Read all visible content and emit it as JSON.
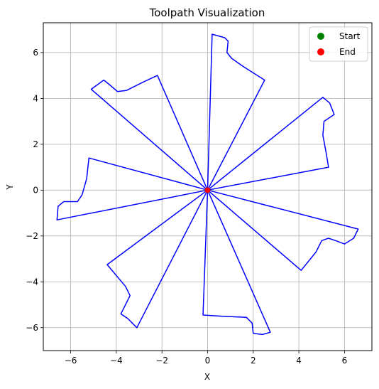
{
  "chart_data": {
    "type": "line",
    "title": "Toolpath Visualization",
    "xlabel": "X",
    "ylabel": "Y",
    "xlim": [
      -7.2,
      7.2
    ],
    "ylim": [
      -7.0,
      7.3
    ],
    "xticks": [
      -6,
      -4,
      -2,
      0,
      2,
      4,
      6
    ],
    "yticks": [
      -6,
      -4,
      -2,
      0,
      2,
      4,
      6
    ],
    "grid": true,
    "legend_position": "top-right",
    "legend": [
      {
        "label": "Start",
        "color": "#008000"
      },
      {
        "label": "End",
        "color": "#ff0000"
      }
    ],
    "path_color": "#0000ff",
    "start": {
      "x": 0,
      "y": 0
    },
    "end": {
      "x": 0,
      "y": 0
    },
    "segments": [
      {
        "x": [
          0,
          5.3,
          5.2,
          5.05,
          5.1,
          5.55,
          5.35,
          5.05,
          0
        ],
        "y": [
          0,
          1.0,
          1.6,
          2.4,
          3.0,
          3.3,
          3.8,
          4.05,
          0
        ]
      },
      {
        "x": [
          0,
          6.6,
          6.4,
          6.0,
          5.6,
          5.3,
          5.0,
          4.75,
          4.1,
          0
        ],
        "y": [
          0,
          -1.7,
          -2.1,
          -2.35,
          -2.2,
          -2.1,
          -2.2,
          -2.7,
          -3.5,
          0
        ]
      },
      {
        "x": [
          0,
          2.75,
          2.4,
          2.0,
          1.95,
          1.7,
          0.6,
          -0.2,
          -0.2,
          0
        ],
        "y": [
          0,
          -6.2,
          -6.3,
          -6.25,
          -5.8,
          -5.55,
          -5.5,
          -5.45,
          -5.4,
          0
        ]
      },
      {
        "x": [
          0,
          -3.1,
          -3.5,
          -3.8,
          -3.6,
          -3.4,
          -3.6,
          -4.4,
          0
        ],
        "y": [
          0,
          -6.0,
          -5.6,
          -5.4,
          -5.0,
          -4.6,
          -4.2,
          -3.25,
          0
        ]
      },
      {
        "x": [
          0,
          -6.6,
          -6.55,
          -6.3,
          -6.0,
          -5.7,
          -5.5,
          -5.3,
          -5.2,
          0
        ],
        "y": [
          0,
          -1.3,
          -0.7,
          -0.5,
          -0.5,
          -0.5,
          -0.2,
          0.5,
          1.4,
          0
        ]
      },
      {
        "x": [
          0,
          -5.1,
          -4.55,
          -4.3,
          -3.95,
          -3.55,
          -2.85,
          -2.2,
          0
        ],
        "y": [
          0,
          4.4,
          4.8,
          4.6,
          4.3,
          4.35,
          4.7,
          5.0,
          0
        ]
      },
      {
        "x": [
          0,
          0.2,
          0.75,
          0.9,
          0.85,
          1.05,
          1.55,
          2.5,
          0
        ],
        "y": [
          0,
          6.8,
          6.65,
          6.5,
          6.0,
          5.75,
          5.4,
          4.8,
          0
        ]
      }
    ]
  }
}
